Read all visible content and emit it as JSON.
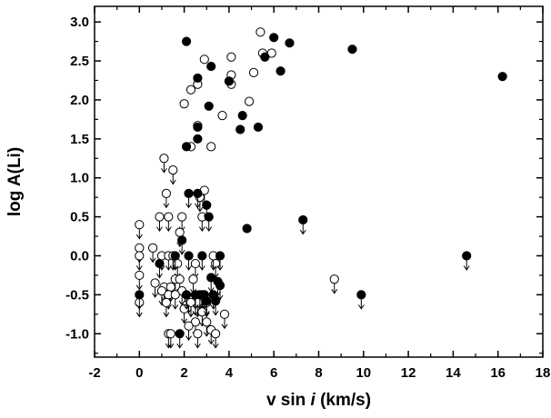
{
  "chart_data": {
    "type": "scatter",
    "xlabel_prefix": "v sin ",
    "xlabel_italic": "i",
    "xlabel_suffix": " (km/s)",
    "ylabel": "log A(Li)",
    "xlim": [
      -2,
      18
    ],
    "ylim": [
      -1.3,
      3.2
    ],
    "xticks": [
      -2,
      0,
      2,
      4,
      6,
      8,
      10,
      12,
      14,
      16,
      18
    ],
    "yticks": [
      -1.0,
      -0.5,
      0.0,
      0.5,
      1.0,
      1.5,
      2.0,
      2.5,
      3.0
    ],
    "ytick_labels": [
      "-1.0",
      "-0.5",
      "0.0",
      "0.5",
      "1.0",
      "1.5",
      "2.0",
      "2.5",
      "3.0"
    ],
    "grid": false,
    "legend": "none",
    "series": [
      {
        "marker": "filled-circle",
        "color": "#000000",
        "detections": [
          [
            2.1,
            2.75
          ],
          [
            6.0,
            2.8
          ],
          [
            6.7,
            2.73
          ],
          [
            5.6,
            2.55
          ],
          [
            9.5,
            2.65
          ],
          [
            16.2,
            2.3
          ],
          [
            3.2,
            2.43
          ],
          [
            2.6,
            2.28
          ],
          [
            6.3,
            2.37
          ],
          [
            4.0,
            2.24
          ],
          [
            3.1,
            1.92
          ],
          [
            4.6,
            1.8
          ],
          [
            2.6,
            1.65
          ],
          [
            4.5,
            1.62
          ],
          [
            5.3,
            1.65
          ],
          [
            2.6,
            1.5
          ],
          [
            2.1,
            1.4
          ],
          [
            4.8,
            0.35
          ]
        ],
        "upper_limits": [
          [
            2.2,
            0.8
          ],
          [
            2.6,
            0.8
          ],
          [
            3.0,
            0.65
          ],
          [
            3.1,
            0.5
          ],
          [
            7.3,
            0.46
          ],
          [
            1.9,
            0.2
          ],
          [
            1.6,
            0.0
          ],
          [
            2.2,
            0.0
          ],
          [
            2.8,
            0.0
          ],
          [
            3.6,
            0.0
          ],
          [
            14.6,
            0.0
          ],
          [
            0.9,
            -0.1
          ],
          [
            3.2,
            -0.28
          ],
          [
            3.5,
            -0.33
          ],
          [
            3.6,
            -0.38
          ],
          [
            0.0,
            -0.5
          ],
          [
            2.1,
            -0.5
          ],
          [
            2.5,
            -0.5
          ],
          [
            2.7,
            -0.5
          ],
          [
            2.9,
            -0.5
          ],
          [
            3.3,
            -0.5
          ],
          [
            3.0,
            -0.58
          ],
          [
            3.4,
            -0.58
          ],
          [
            9.9,
            -0.5
          ],
          [
            1.8,
            -1.0
          ]
        ]
      },
      {
        "marker": "open-circle",
        "color": "#000000",
        "detections": [
          [
            5.4,
            2.87
          ],
          [
            5.5,
            2.6
          ],
          [
            5.9,
            2.6
          ],
          [
            4.1,
            2.55
          ],
          [
            2.9,
            2.52
          ],
          [
            2.3,
            2.13
          ],
          [
            2.6,
            2.2
          ],
          [
            5.1,
            2.35
          ],
          [
            4.1,
            2.32
          ],
          [
            4.1,
            2.2
          ],
          [
            4.9,
            1.98
          ],
          [
            2.0,
            1.95
          ],
          [
            3.7,
            1.8
          ],
          [
            2.6,
            1.67
          ],
          [
            2.3,
            1.4
          ],
          [
            3.2,
            1.4
          ]
        ],
        "upper_limits": [
          [
            1.1,
            1.25
          ],
          [
            1.5,
            1.1
          ],
          [
            1.2,
            0.8
          ],
          [
            2.9,
            0.84
          ],
          [
            2.7,
            0.75
          ],
          [
            0.9,
            0.5
          ],
          [
            1.3,
            0.5
          ],
          [
            1.9,
            0.5
          ],
          [
            2.8,
            0.5
          ],
          [
            0.0,
            0.4
          ],
          [
            1.8,
            0.3
          ],
          [
            0.0,
            0.1
          ],
          [
            0.6,
            0.1
          ],
          [
            0.0,
            0.0
          ],
          [
            1.0,
            0.0
          ],
          [
            1.3,
            0.0
          ],
          [
            1.5,
            0.0
          ],
          [
            1.7,
            -0.1
          ],
          [
            2.5,
            -0.1
          ],
          [
            3.4,
            -0.1
          ],
          [
            3.3,
            0.0
          ],
          [
            0.0,
            -0.25
          ],
          [
            1.6,
            -0.3
          ],
          [
            1.8,
            -0.3
          ],
          [
            2.4,
            -0.3
          ],
          [
            8.7,
            -0.3
          ],
          [
            0.7,
            -0.35
          ],
          [
            1.1,
            -0.4
          ],
          [
            1.4,
            -0.4
          ],
          [
            1.9,
            -0.45
          ],
          [
            1.0,
            -0.45
          ],
          [
            1.3,
            -0.5
          ],
          [
            1.6,
            -0.5
          ],
          [
            2.2,
            -0.55
          ],
          [
            2.5,
            -0.58
          ],
          [
            2.6,
            -0.6
          ],
          [
            2.8,
            -0.5
          ],
          [
            0.0,
            -0.6
          ],
          [
            1.2,
            -0.6
          ],
          [
            2.0,
            -0.68
          ],
          [
            2.3,
            -0.6
          ],
          [
            3.0,
            -0.6
          ],
          [
            3.8,
            -0.75
          ],
          [
            2.8,
            -0.72
          ],
          [
            2.5,
            -0.85
          ],
          [
            3.0,
            -0.85
          ],
          [
            2.2,
            -0.9
          ],
          [
            1.3,
            -1.0
          ],
          [
            1.4,
            -1.0
          ],
          [
            3.2,
            -0.95
          ],
          [
            2.6,
            -1.0
          ],
          [
            3.4,
            -1.0
          ]
        ]
      }
    ]
  }
}
